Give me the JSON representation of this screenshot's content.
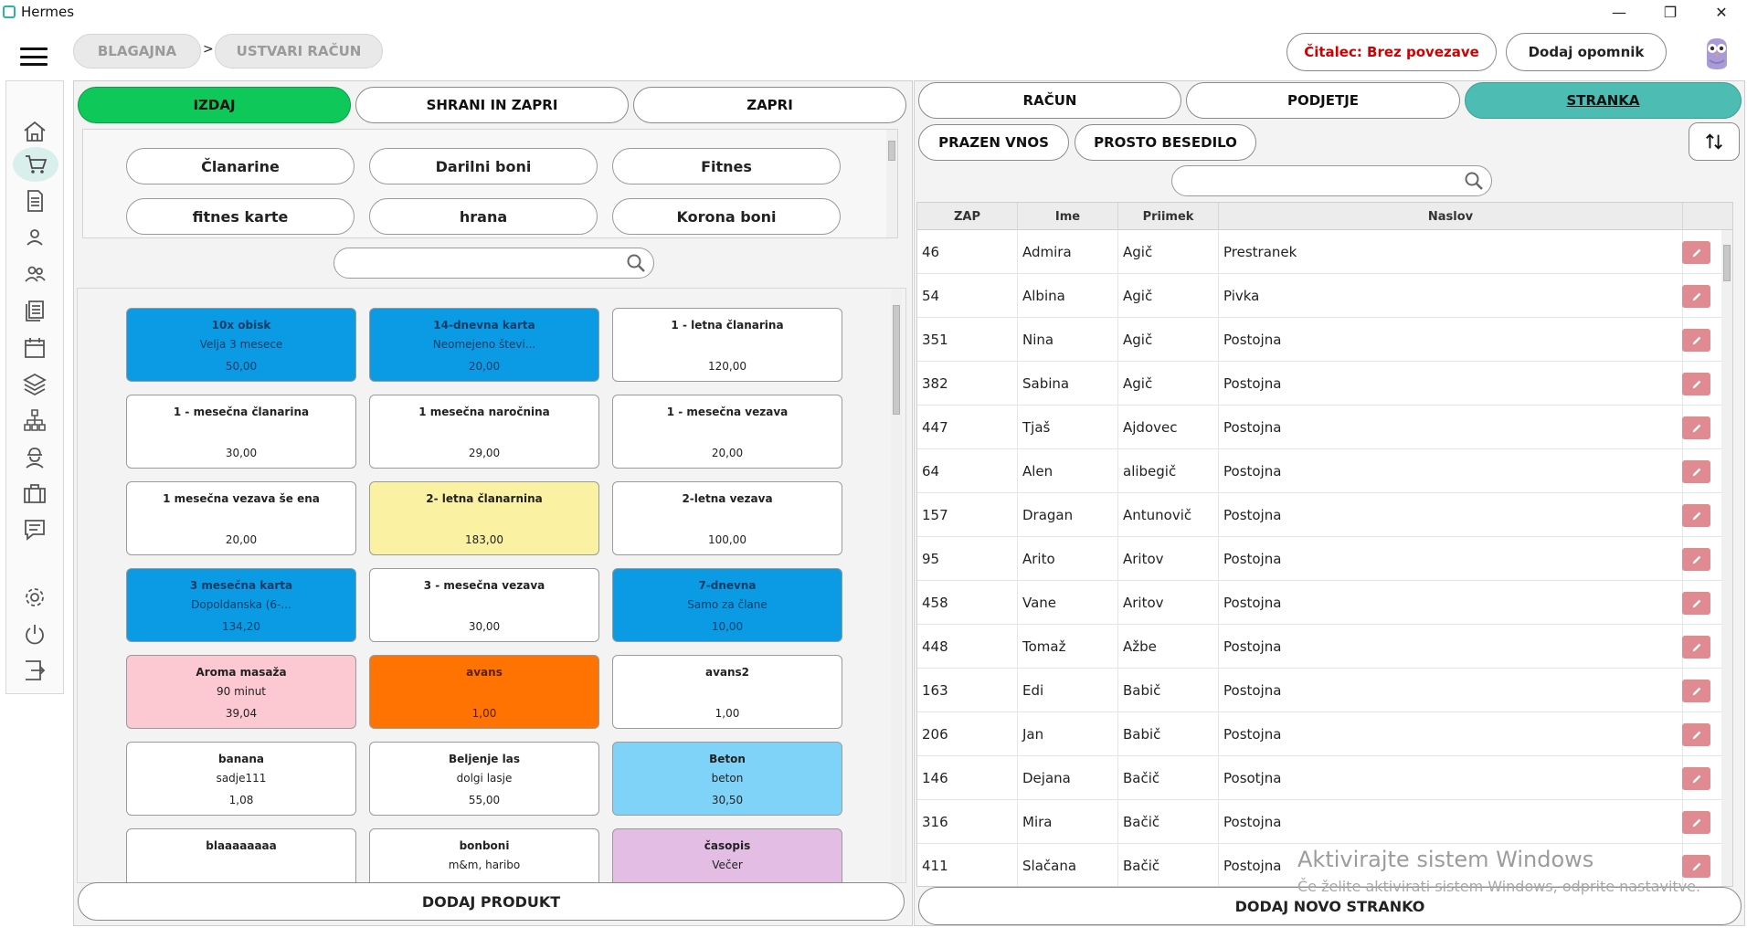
{
  "window": {
    "title": "Hermes",
    "controls": [
      "—",
      "❐",
      "✕"
    ]
  },
  "header": {
    "breadcrumb": [
      "BLAGAJNA",
      "USTVARI RAČUN"
    ],
    "breadcrumb_sep": ">",
    "reader_status": "Čitalec: Brez povezave",
    "add_reminder": "Dodaj opomnik"
  },
  "sidebar": {
    "icons": [
      "home-icon",
      "cart-icon",
      "document-icon",
      "user-icon",
      "users-icon",
      "list-icon",
      "calendar-icon",
      "layers-icon",
      "network-icon",
      "worker-icon",
      "briefcase-icon",
      "chat-icon",
      "settings-icon",
      "power-icon",
      "logout-icon"
    ],
    "active": "cart-icon"
  },
  "left_panel": {
    "actions": {
      "issue": "IZDAJ",
      "save_close": "SHRANI IN ZAPRI",
      "close": "ZAPRI"
    },
    "categories": [
      "Članarine",
      "Darilni boni",
      "Fitnes",
      "fitnes karte",
      "hrana",
      "Korona boni"
    ],
    "search_placeholder": "",
    "products": [
      {
        "name": "10x obisk",
        "sub": "Velja 3 mesece",
        "price": "50,00",
        "color": "blue"
      },
      {
        "name": "14-dnevna karta",
        "sub": "Neomejeno števi...",
        "price": "20,00",
        "color": "blue"
      },
      {
        "name": "1 - letna članarina",
        "sub": "",
        "price": "120,00",
        "color": "white"
      },
      {
        "name": "1 - mesečna članarina",
        "sub": "",
        "price": "30,00",
        "color": "white"
      },
      {
        "name": "1 mesečna naročnina",
        "sub": "",
        "price": "29,00",
        "color": "white"
      },
      {
        "name": "1 - mesečna vezava",
        "sub": "",
        "price": "20,00",
        "color": "white"
      },
      {
        "name": "1 mesečna vezava še ena",
        "sub": "",
        "price": "20,00",
        "color": "white"
      },
      {
        "name": "2- letna članarnina",
        "sub": "",
        "price": "183,00",
        "color": "yellow"
      },
      {
        "name": "2-letna vezava",
        "sub": "",
        "price": "100,00",
        "color": "white"
      },
      {
        "name": "3 mesečna karta",
        "sub": "Dopoldanska (6-...",
        "price": "134,20",
        "color": "blue"
      },
      {
        "name": "3 - mesečna vezava",
        "sub": "",
        "price": "30,00",
        "color": "white"
      },
      {
        "name": "7-dnevna",
        "sub": "Samo za člane",
        "price": "10,00",
        "color": "blue"
      },
      {
        "name": "Aroma masaža",
        "sub": "90 minut",
        "price": "39,04",
        "color": "pink"
      },
      {
        "name": "avans",
        "sub": "",
        "price": "1,00",
        "color": "orange"
      },
      {
        "name": "avans2",
        "sub": "",
        "price": "1,00",
        "color": "white"
      },
      {
        "name": "banana",
        "sub": "sadje111",
        "price": "1,08",
        "color": "white"
      },
      {
        "name": "Beljenje las",
        "sub": "dolgi lasje",
        "price": "55,00",
        "color": "white"
      },
      {
        "name": "Beton",
        "sub": "beton",
        "price": "30,50",
        "color": "lightblue"
      },
      {
        "name": "blaaaaaaaa",
        "sub": "",
        "price": "",
        "color": "white"
      },
      {
        "name": "bonboni",
        "sub": "m&m, haribo",
        "price": "",
        "color": "white"
      },
      {
        "name": "časopis",
        "sub": "Večer",
        "price": "",
        "color": "lilac"
      }
    ],
    "add_product": "DODAJ PRODUKT"
  },
  "right_panel": {
    "tabs": {
      "invoice": "RAČUN",
      "company": "PODJETJE",
      "customer": "STRANKA"
    },
    "sub_actions": {
      "empty": "PRAZEN VNOS",
      "free_text": "PROSTO BESEDILO"
    },
    "search_placeholder": "",
    "columns": [
      "ZAP",
      "Ime",
      "Priimek",
      "Naslov"
    ],
    "rows": [
      [
        "46",
        "Admira",
        "Agič",
        "Prestranek"
      ],
      [
        "54",
        "Albina",
        "Agič",
        "Pivka"
      ],
      [
        "351",
        "Nina",
        "Agič",
        "Postojna"
      ],
      [
        "382",
        "Sabina",
        "Agič",
        "Postojna"
      ],
      [
        "447",
        "Tjaš",
        "Ajdovec",
        "Postojna"
      ],
      [
        "64",
        "Alen",
        "alibegič",
        "Postojna"
      ],
      [
        "157",
        "Dragan",
        "Antunovič",
        "Postojna"
      ],
      [
        "95",
        "Arito",
        "Aritov",
        "Postojna"
      ],
      [
        "458",
        "Vane",
        "Aritov",
        "Postojna"
      ],
      [
        "448",
        "Tomaž",
        "Ažbe",
        "Postojna"
      ],
      [
        "163",
        "Edi",
        "Babič",
        "Postojna"
      ],
      [
        "206",
        "Jan",
        "Babič",
        "Postojna"
      ],
      [
        "146",
        "Dejana",
        "Bačič",
        "Posotjna"
      ],
      [
        "316",
        "Mira",
        "Bačič",
        "Postojna"
      ],
      [
        "411",
        "Slačana",
        "Bačič",
        "Postojna"
      ]
    ],
    "add_customer": "DODAJ NOVO STRANKO"
  },
  "watermark": {
    "line1": "Aktivirajte sistem Windows",
    "line2": "Če želite aktivirati sistem Windows, odprite nastavitve."
  },
  "colors": {
    "issue_green": "#0ec95a",
    "customer_teal": "#4dbdb4",
    "tile_blue": "#0a9be4",
    "edit_red": "#e08a91",
    "reader_red": "#d00000"
  }
}
